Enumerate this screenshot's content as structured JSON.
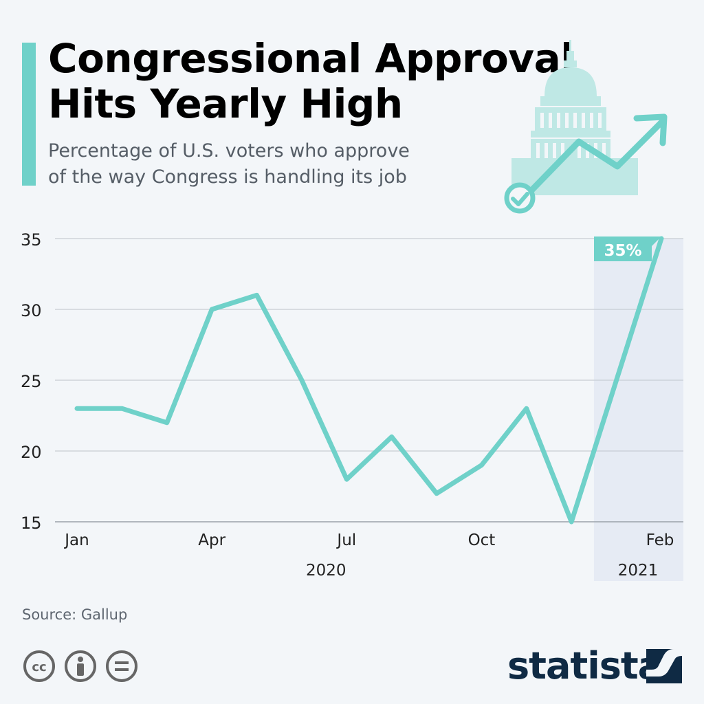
{
  "header": {
    "title_line1": "Congressional Approval",
    "title_line2": "Hits Yearly High",
    "subtitle_line1": "Percentage of U.S. voters who approve",
    "subtitle_line2": "of the way Congress is handling its job"
  },
  "colors": {
    "accent": "#6fd1c9",
    "highlight_band": "#e6ebf4",
    "grid": "#c7ccd3",
    "text": "#222222",
    "brand": "#0f2a44"
  },
  "chart_data": {
    "type": "line",
    "x": [
      "2020-01",
      "2020-02",
      "2020-03",
      "2020-04",
      "2020-05",
      "2020-06",
      "2020-07",
      "2020-08",
      "2020-09",
      "2020-10",
      "2020-11",
      "2020-12",
      "2021-01",
      "2021-02"
    ],
    "series": [
      {
        "values": [
          23,
          23,
          22,
          30,
          31,
          25,
          18,
          21,
          17,
          19,
          23,
          15,
          25,
          35
        ]
      }
    ],
    "ylim": [
      15,
      35
    ],
    "yticks": [
      15,
      20,
      25,
      30,
      35
    ],
    "xtick_labels": [
      {
        "x": "2020-01",
        "label": "Jan"
      },
      {
        "x": "2020-04",
        "label": "Apr"
      },
      {
        "x": "2020-07",
        "label": "Jul"
      },
      {
        "x": "2020-10",
        "label": "Oct"
      },
      {
        "x": "2021-02",
        "label": "Feb"
      }
    ],
    "year_labels": [
      {
        "x": "2020-07",
        "label": "2020"
      },
      {
        "x": "2021-02",
        "label": "2021"
      }
    ],
    "highlight_range": [
      "2021-01",
      "2021-02"
    ],
    "annotation": {
      "x": "2021-02",
      "label": "35%"
    },
    "grid": true,
    "legend": "none"
  },
  "footer": {
    "source": "Source: Gallup",
    "brand": "statista",
    "license_icons": [
      "cc-icon",
      "attribution-icon",
      "no-derivatives-icon"
    ]
  }
}
